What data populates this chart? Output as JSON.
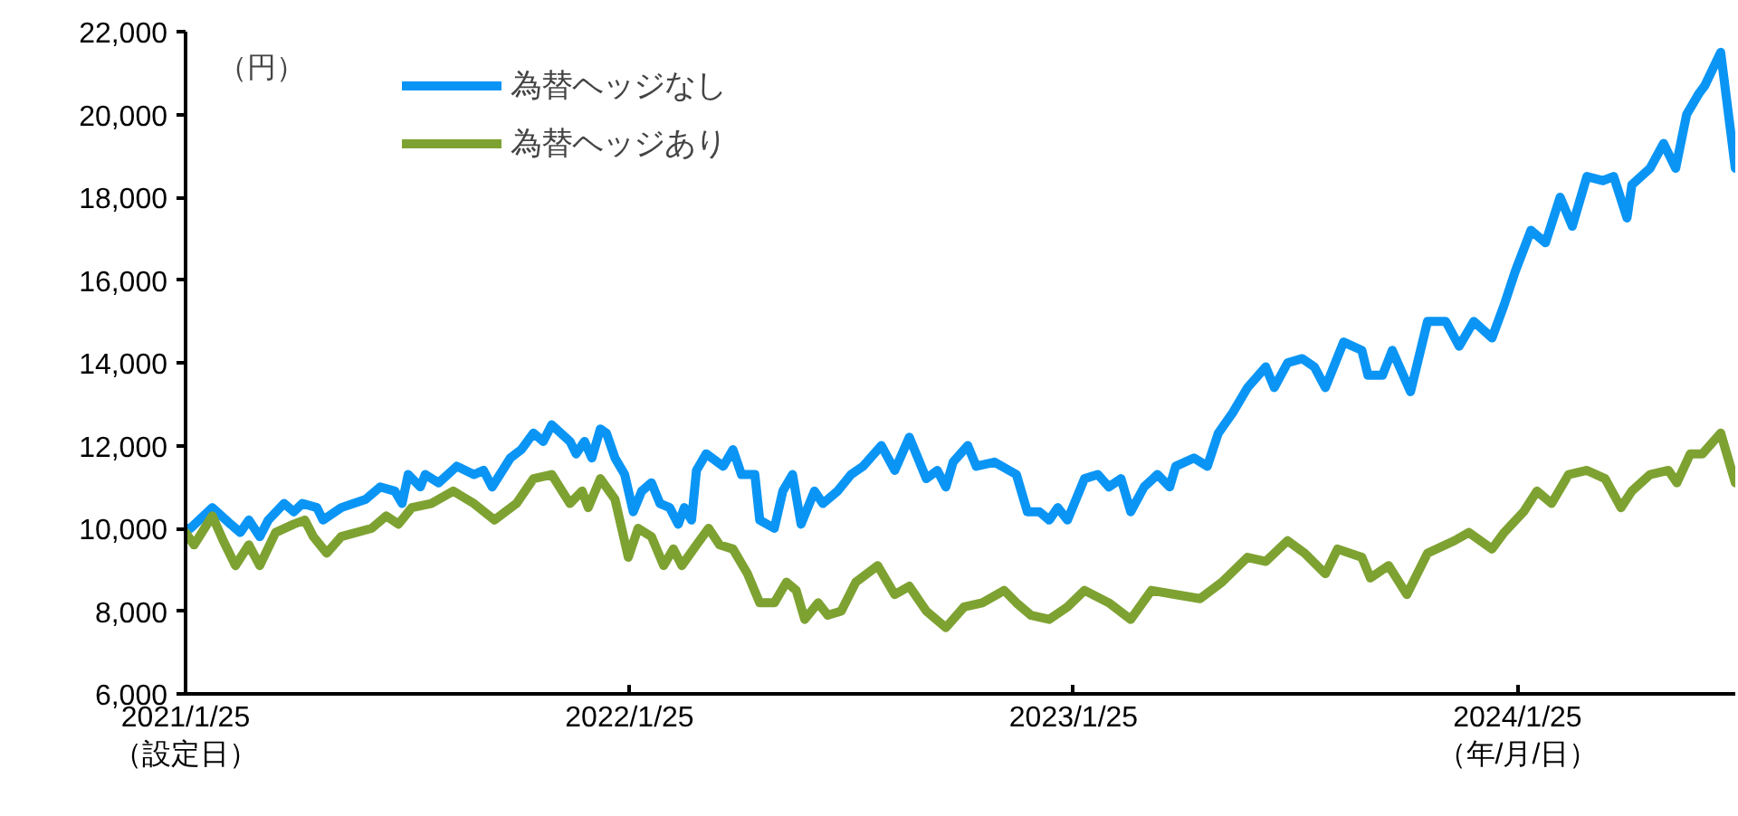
{
  "chart_data": {
    "type": "line",
    "ylabel": "（円）",
    "xlabel": "（年/月/日）",
    "xlim": [
      "2021-01-25",
      "2024-07-22"
    ],
    "ylim": [
      6000,
      22000
    ],
    "xticks": [
      {
        "value": "2021-01-25",
        "label": "2021/1/25\n（設定日）"
      },
      {
        "value": "2022-01-25",
        "label": "2022/1/25"
      },
      {
        "value": "2023-01-25",
        "label": "2023/1/25"
      },
      {
        "value": "2024-01-25",
        "label": "2024/1/25"
      }
    ],
    "yticks": [
      {
        "value": 6000,
        "label": "6,000"
      },
      {
        "value": 8000,
        "label": "8,000"
      },
      {
        "value": 10000,
        "label": "10,000"
      },
      {
        "value": 12000,
        "label": "12,000"
      },
      {
        "value": 14000,
        "label": "14,000"
      },
      {
        "value": 16000,
        "label": "16,000"
      },
      {
        "value": 18000,
        "label": "18,000"
      },
      {
        "value": 20000,
        "label": "20,000"
      },
      {
        "value": 22000,
        "label": "22,000"
      }
    ],
    "grid": false,
    "legend": "top left",
    "marker": "none",
    "line_style": "solid",
    "series": [
      {
        "name": "為替ヘッジなし",
        "color": "#0a95f5",
        "x": [
          "2021-01-25",
          "2021-01-29",
          "2021-02-16",
          "2021-03-03",
          "2021-03-11",
          "2021-03-18",
          "2021-03-27",
          "2021-04-03",
          "2021-04-16",
          "2021-04-24",
          "2021-05-01",
          "2021-05-13",
          "2021-05-18",
          "2021-06-02",
          "2021-06-22",
          "2021-07-04",
          "2021-07-16",
          "2021-07-22",
          "2021-07-27",
          "2021-08-06",
          "2021-08-10",
          "2021-08-21",
          "2021-09-05",
          "2021-09-19",
          "2021-09-27",
          "2021-10-04",
          "2021-10-19",
          "2021-10-28",
          "2021-11-07",
          "2021-11-15",
          "2021-11-22",
          "2021-12-07",
          "2021-12-12",
          "2021-12-19",
          "2021-12-25",
          "2022-01-01",
          "2022-01-06",
          "2022-01-13",
          "2022-01-21",
          "2022-01-28",
          "2022-02-04",
          "2022-02-12",
          "2022-02-19",
          "2022-02-27",
          "2022-03-06",
          "2022-03-11",
          "2022-03-17",
          "2022-03-21",
          "2022-03-29",
          "2022-04-12",
          "2022-04-20",
          "2022-04-27",
          "2022-05-08",
          "2022-05-12",
          "2022-05-24",
          "2022-05-31",
          "2022-06-08",
          "2022-06-15",
          "2022-06-26",
          "2022-07-03",
          "2022-07-15",
          "2022-07-26",
          "2022-08-05",
          "2022-08-20",
          "2022-08-31",
          "2022-09-12",
          "2022-09-26",
          "2022-10-05",
          "2022-10-12",
          "2022-10-18",
          "2022-10-30",
          "2022-11-06",
          "2022-11-21",
          "2022-12-09",
          "2022-12-18",
          "2022-12-28",
          "2023-01-05",
          "2023-01-12",
          "2023-01-20",
          "2023-02-03",
          "2023-02-14",
          "2023-02-23",
          "2023-03-05",
          "2023-03-13",
          "2023-03-24",
          "2023-04-04",
          "2023-04-14",
          "2023-04-19",
          "2023-05-04",
          "2023-05-15",
          "2023-05-24",
          "2023-06-05",
          "2023-06-17",
          "2023-07-02",
          "2023-07-09",
          "2023-07-20",
          "2023-08-01",
          "2023-08-11",
          "2023-08-20",
          "2023-09-04",
          "2023-09-19",
          "2023-09-24",
          "2023-10-06",
          "2023-10-14",
          "2023-10-29",
          "2023-11-12",
          "2023-11-27",
          "2023-12-08",
          "2023-12-20",
          "2024-01-04",
          "2024-01-14",
          "2024-01-23",
          "2024-02-05",
          "2024-02-17",
          "2024-02-29",
          "2024-03-10",
          "2024-03-22",
          "2024-04-04",
          "2024-04-13",
          "2024-04-24",
          "2024-04-28",
          "2024-05-13",
          "2024-05-24",
          "2024-06-03",
          "2024-06-12",
          "2024-06-22",
          "2024-06-27",
          "2024-07-10",
          "2024-07-16",
          "2024-07-22"
        ],
        "values": [
          10000,
          10000,
          10500,
          10100,
          9900,
          10200,
          9800,
          10200,
          10600,
          10400,
          10600,
          10500,
          10200,
          10500,
          10700,
          11000,
          10900,
          10600,
          11300,
          11000,
          11300,
          11100,
          11500,
          11300,
          11400,
          11000,
          11700,
          11900,
          12300,
          12100,
          12500,
          12100,
          11800,
          12100,
          11700,
          12400,
          12300,
          11700,
          11300,
          10400,
          10900,
          11100,
          10600,
          10500,
          10100,
          10500,
          10200,
          11400,
          11800,
          11500,
          11900,
          11300,
          11300,
          10200,
          10000,
          10900,
          11300,
          10100,
          10900,
          10600,
          10900,
          11300,
          11500,
          12000,
          11400,
          12200,
          11200,
          11400,
          11000,
          11600,
          12000,
          11500,
          11600,
          11300,
          10400,
          10400,
          10200,
          10500,
          10200,
          11200,
          11300,
          11000,
          11200,
          10400,
          11000,
          11300,
          11000,
          11500,
          11700,
          11500,
          12300,
          12800,
          13400,
          13900,
          13400,
          14000,
          14100,
          13900,
          13400,
          14500,
          14300,
          13700,
          13700,
          14300,
          13300,
          15000,
          15000,
          14400,
          15000,
          14600,
          15400,
          16200,
          17200,
          16900,
          18000,
          17300,
          18500,
          18400,
          18500,
          17500,
          18300,
          18700,
          19300,
          18700,
          20000,
          20500,
          20700,
          21500,
          20100,
          18700
        ]
      },
      {
        "name": "為替ヘッジあり",
        "color": "#7ea232",
        "x": [
          "2021-01-25",
          "2021-02-01",
          "2021-02-16",
          "2021-02-25",
          "2021-03-07",
          "2021-03-18",
          "2021-03-27",
          "2021-04-09",
          "2021-04-24",
          "2021-05-03",
          "2021-05-10",
          "2021-05-21",
          "2021-06-02",
          "2021-06-27",
          "2021-07-09",
          "2021-07-19",
          "2021-07-30",
          "2021-08-15",
          "2021-09-02",
          "2021-09-19",
          "2021-10-06",
          "2021-10-24",
          "2021-11-07",
          "2021-11-22",
          "2021-12-07",
          "2021-12-17",
          "2021-12-22",
          "2022-01-01",
          "2022-01-13",
          "2022-01-24",
          "2022-02-01",
          "2022-02-12",
          "2022-02-22",
          "2022-03-02",
          "2022-03-09",
          "2022-03-21",
          "2022-03-31",
          "2022-04-09",
          "2022-04-20",
          "2022-05-02",
          "2022-05-12",
          "2022-05-24",
          "2022-06-03",
          "2022-06-11",
          "2022-06-18",
          "2022-06-29",
          "2022-07-07",
          "2022-07-18",
          "2022-07-30",
          "2022-08-17",
          "2022-08-31",
          "2022-09-12",
          "2022-09-26",
          "2022-10-12",
          "2022-10-27",
          "2022-11-11",
          "2022-11-29",
          "2022-12-09",
          "2022-12-21",
          "2023-01-05",
          "2023-01-20",
          "2023-02-03",
          "2023-02-23",
          "2023-03-13",
          "2023-03-30",
          "2023-04-19",
          "2023-05-09",
          "2023-05-27",
          "2023-06-17",
          "2023-07-02",
          "2023-07-20",
          "2023-08-03",
          "2023-08-20",
          "2023-08-30",
          "2023-09-19",
          "2023-09-26",
          "2023-10-11",
          "2023-10-26",
          "2023-11-12",
          "2023-12-04",
          "2023-12-16",
          "2024-01-04",
          "2024-01-14",
          "2024-01-30",
          "2024-02-10",
          "2024-02-22",
          "2024-03-07",
          "2024-03-22",
          "2024-04-06",
          "2024-04-19",
          "2024-04-28",
          "2024-05-13",
          "2024-05-28",
          "2024-06-04",
          "2024-06-15",
          "2024-06-25",
          "2024-07-10",
          "2024-07-16",
          "2024-07-22"
        ],
        "values": [
          9900,
          9600,
          10300,
          9700,
          9100,
          9600,
          9100,
          9900,
          10100,
          10200,
          9800,
          9400,
          9800,
          10000,
          10300,
          10100,
          10500,
          10600,
          10900,
          10600,
          10200,
          10600,
          11200,
          11300,
          10600,
          10900,
          10500,
          11200,
          10700,
          9300,
          10000,
          9800,
          9100,
          9500,
          9100,
          9600,
          10000,
          9600,
          9500,
          8900,
          8200,
          8200,
          8700,
          8500,
          7800,
          8200,
          7900,
          8000,
          8700,
          9100,
          8400,
          8600,
          8000,
          7600,
          8100,
          8200,
          8500,
          8200,
          7900,
          7800,
          8100,
          8500,
          8200,
          7800,
          8500,
          8400,
          8300,
          8700,
          9300,
          9200,
          9700,
          9400,
          8900,
          9500,
          9300,
          8800,
          9100,
          8400,
          9400,
          9700,
          9900,
          9500,
          9900,
          10400,
          10900,
          10600,
          11300,
          11400,
          11200,
          10500,
          10900,
          11300,
          11400,
          11100,
          11800,
          11800,
          12300,
          11700,
          11100
        ]
      }
    ]
  }
}
